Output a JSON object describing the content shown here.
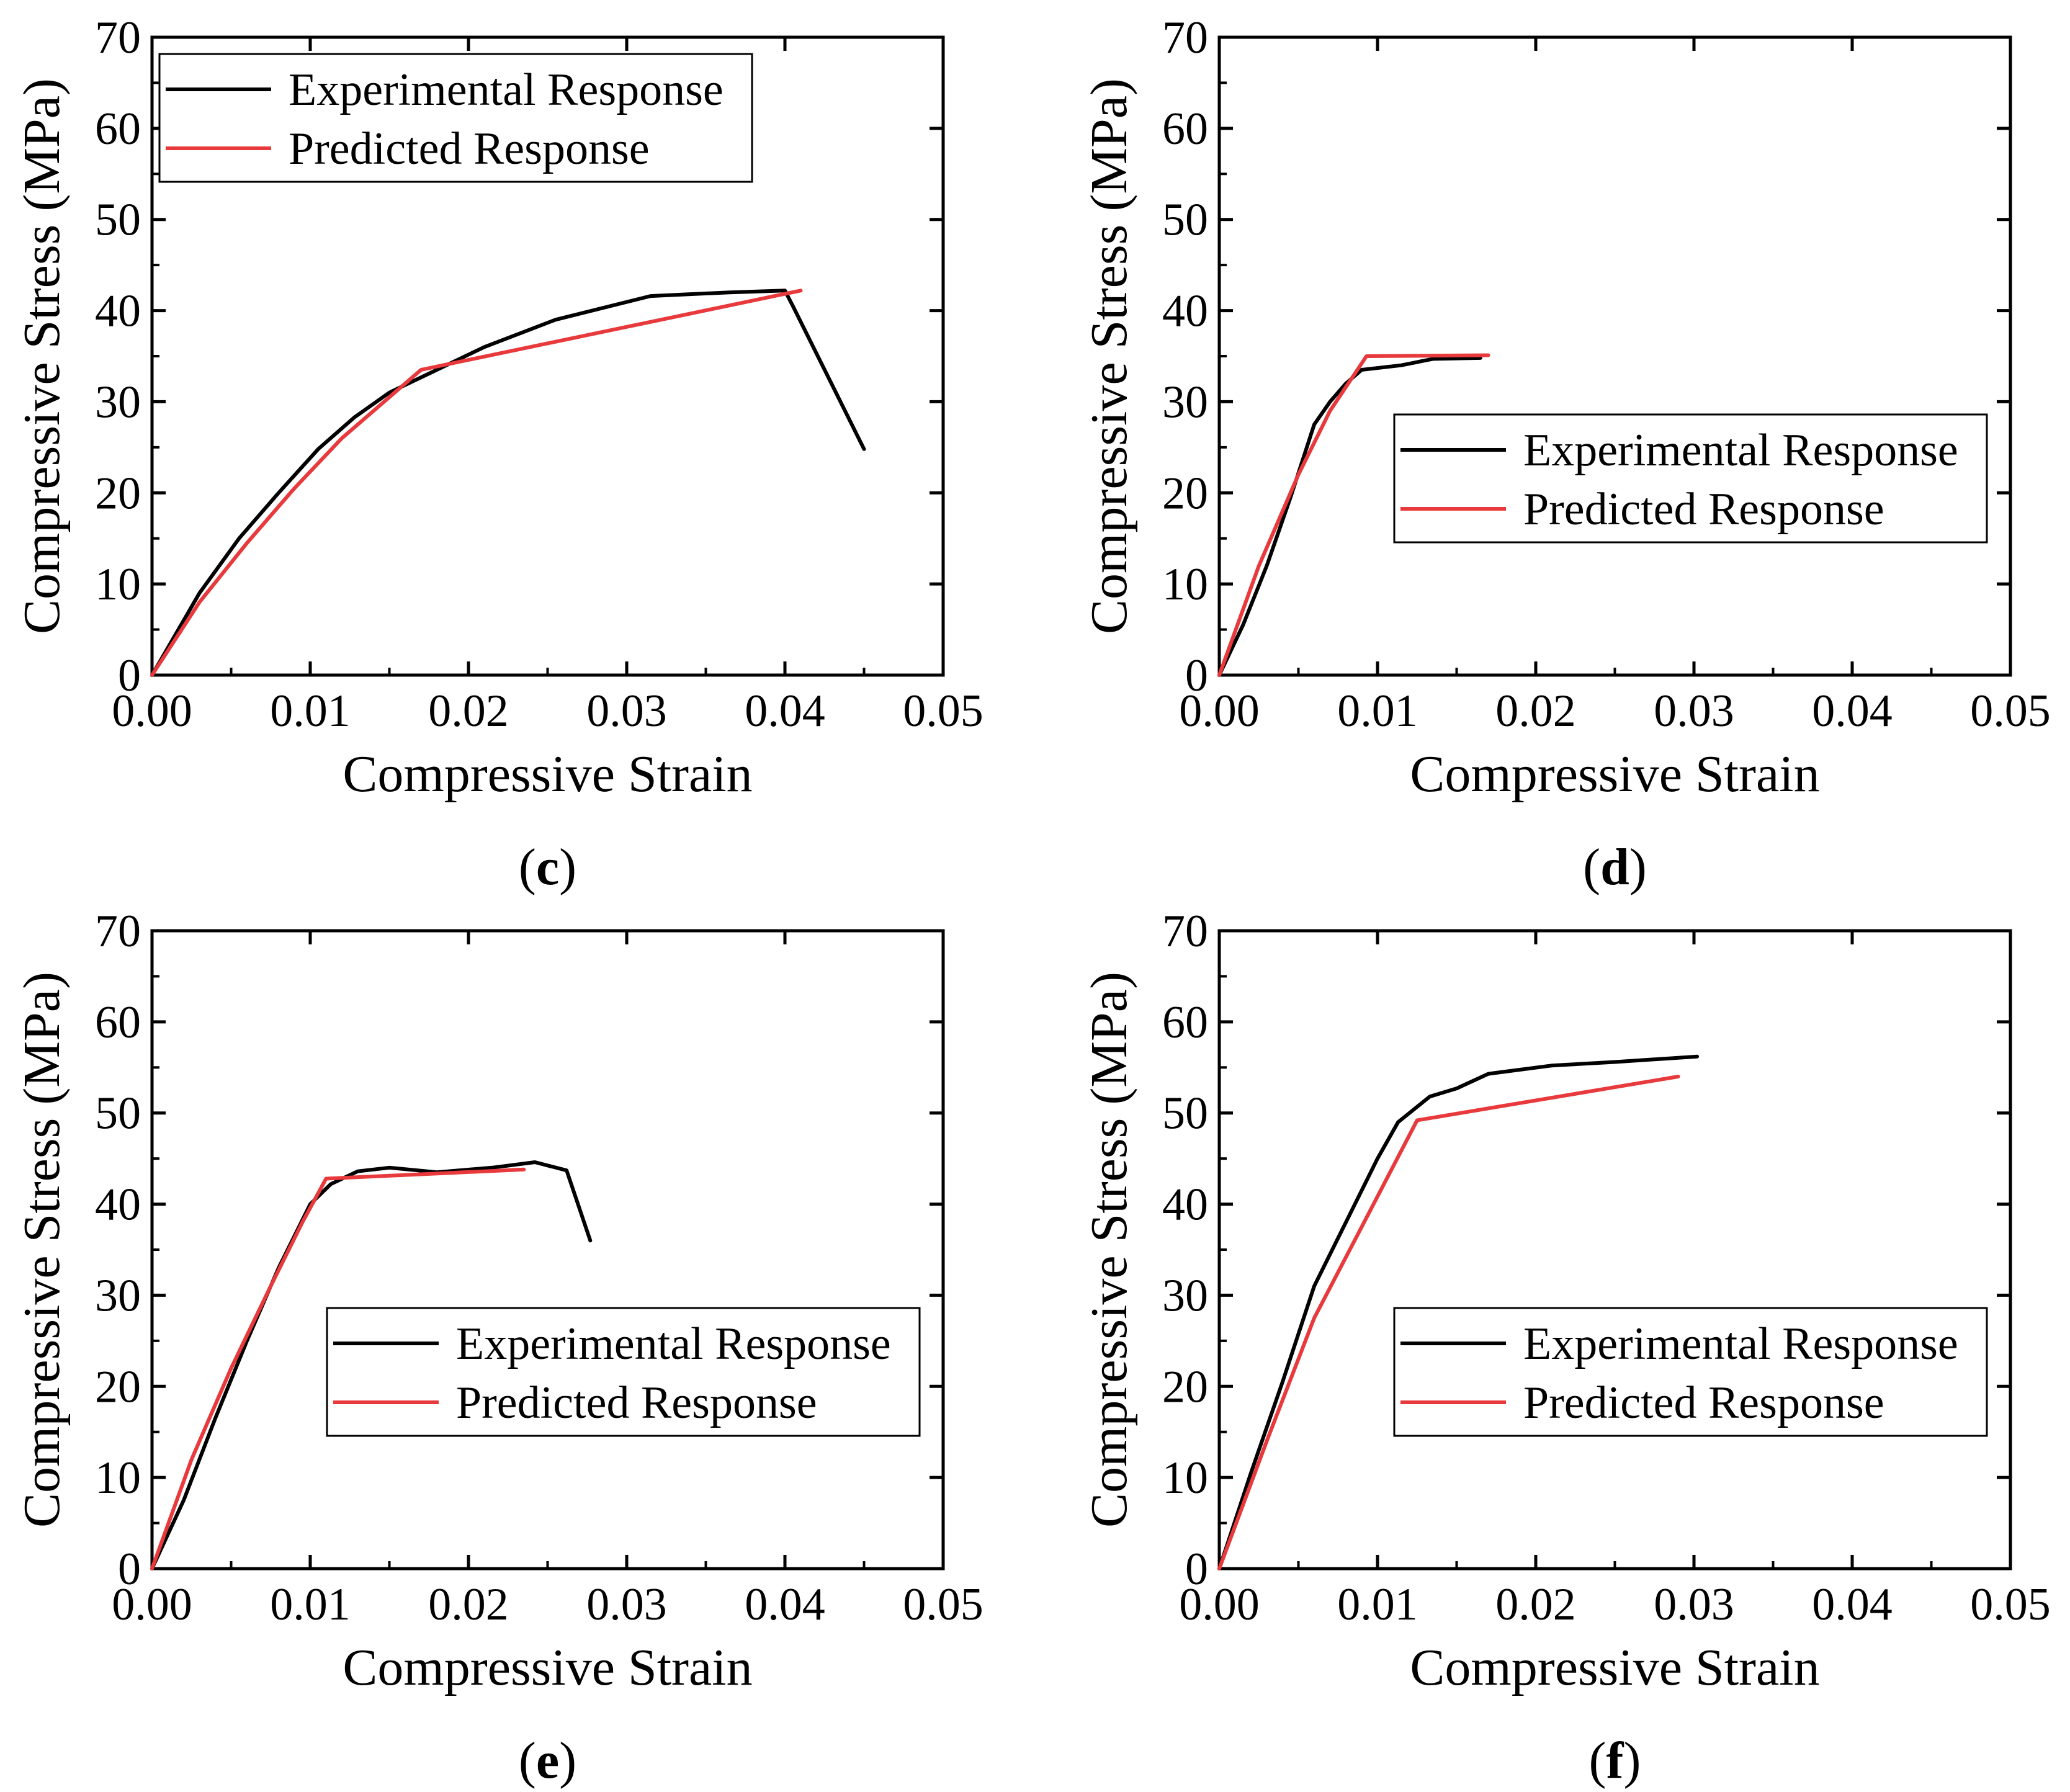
{
  "colors": {
    "experimental": "#000000",
    "predicted": "#e8393c",
    "axis": "#000000"
  },
  "chart_data": [
    {
      "panel_label": "c",
      "type": "line",
      "xlabel": "Compressive Strain",
      "ylabel": "Compressive Stress (MPa)",
      "xlim": [
        0,
        0.05
      ],
      "ylim": [
        0,
        70
      ],
      "xticks": [
        "0.00",
        "0.01",
        "0.02",
        "0.03",
        "0.04",
        "0.05"
      ],
      "yticks": [
        "0",
        "10",
        "20",
        "30",
        "40",
        "50",
        "60",
        "70"
      ],
      "legend_position": "top-left",
      "series": [
        {
          "name": "Experimental Response",
          "color": "#000000",
          "x": [
            0,
            0.003,
            0.0055,
            0.008,
            0.0105,
            0.0128,
            0.015,
            0.018,
            0.021,
            0.0255,
            0.0315,
            0.0365,
            0.04,
            0.0405,
            0.045
          ],
          "y": [
            0,
            9,
            15,
            20,
            24.8,
            28.3,
            31,
            33.5,
            36,
            39,
            41.6,
            42,
            42.2,
            40.5,
            24.8
          ]
        },
        {
          "name": "Predicted Response",
          "color": "#e8393c",
          "x": [
            0,
            0.003,
            0.006,
            0.009,
            0.012,
            0.015,
            0.017,
            0.041
          ],
          "y": [
            0,
            8,
            14.5,
            20.5,
            26,
            30.5,
            33.5,
            42.2
          ]
        }
      ]
    },
    {
      "panel_label": "d",
      "type": "line",
      "xlabel": "Compressive Strain",
      "ylabel": "Compressive Stress (MPa)",
      "xlim": [
        0,
        0.05
      ],
      "ylim": [
        0,
        70
      ],
      "xticks": [
        "0.00",
        "0.01",
        "0.02",
        "0.03",
        "0.04",
        "0.05"
      ],
      "yticks": [
        "0",
        "10",
        "20",
        "30",
        "40",
        "50",
        "60",
        "70"
      ],
      "legend_position": "bottom-right",
      "series": [
        {
          "name": "Experimental Response",
          "color": "#000000",
          "x": [
            0,
            0.0015,
            0.003,
            0.0045,
            0.006,
            0.007,
            0.008,
            0.009,
            0.0115,
            0.0135,
            0.0165
          ],
          "y": [
            0,
            5.5,
            12,
            19.5,
            27.5,
            30,
            32,
            33.5,
            34,
            34.7,
            34.8
          ]
        },
        {
          "name": "Predicted Response",
          "color": "#e8393c",
          "x": [
            0,
            0.0025,
            0.005,
            0.007,
            0.0093,
            0.017
          ],
          "y": [
            0,
            12,
            22,
            29,
            35,
            35.1
          ]
        }
      ]
    },
    {
      "panel_label": "e",
      "type": "line",
      "xlabel": "Compressive Strain",
      "ylabel": "Compressive Stress (MPa)",
      "xlim": [
        0,
        0.05
      ],
      "ylim": [
        0,
        70
      ],
      "xticks": [
        "0.00",
        "0.01",
        "0.02",
        "0.03",
        "0.04",
        "0.05"
      ],
      "yticks": [
        "0",
        "10",
        "20",
        "30",
        "40",
        "50",
        "60",
        "70"
      ],
      "legend_position": "bottom-right",
      "series": [
        {
          "name": "Experimental Response",
          "color": "#000000",
          "x": [
            0,
            0.002,
            0.004,
            0.006,
            0.008,
            0.01,
            0.0113,
            0.013,
            0.015,
            0.018,
            0.0215,
            0.0242,
            0.0262,
            0.0277
          ],
          "y": [
            0,
            7.5,
            16.5,
            25,
            33,
            40,
            42.2,
            43.6,
            44,
            43.5,
            44,
            44.6,
            43.7,
            36
          ]
        },
        {
          "name": "Predicted Response",
          "color": "#e8393c",
          "x": [
            0,
            0.0025,
            0.005,
            0.0075,
            0.0095,
            0.011,
            0.0235
          ],
          "y": [
            0,
            12,
            22,
            31,
            38,
            42.8,
            43.8
          ]
        }
      ]
    },
    {
      "panel_label": "f",
      "type": "line",
      "xlabel": "Compressive Strain",
      "ylabel": "Compressive Stress (MPa)",
      "xlim": [
        0,
        0.05
      ],
      "ylim": [
        0,
        70
      ],
      "xticks": [
        "0.00",
        "0.01",
        "0.02",
        "0.03",
        "0.04",
        "0.05"
      ],
      "yticks": [
        "0",
        "10",
        "20",
        "30",
        "40",
        "50",
        "60",
        "70"
      ],
      "legend_position": "bottom-right",
      "series": [
        {
          "name": "Experimental Response",
          "color": "#000000",
          "x": [
            0,
            0.002,
            0.004,
            0.006,
            0.008,
            0.01,
            0.0113,
            0.0133,
            0.015,
            0.017,
            0.021,
            0.025,
            0.0302
          ],
          "y": [
            0,
            10.5,
            20.5,
            31,
            38,
            45,
            49,
            51.8,
            52.7,
            54.3,
            55.2,
            55.6,
            56.2
          ]
        },
        {
          "name": "Predicted Response",
          "color": "#e8393c",
          "x": [
            0,
            0.003,
            0.006,
            0.009,
            0.0125,
            0.029
          ],
          "y": [
            0,
            14,
            27.5,
            37.5,
            49.2,
            54
          ]
        }
      ]
    }
  ]
}
